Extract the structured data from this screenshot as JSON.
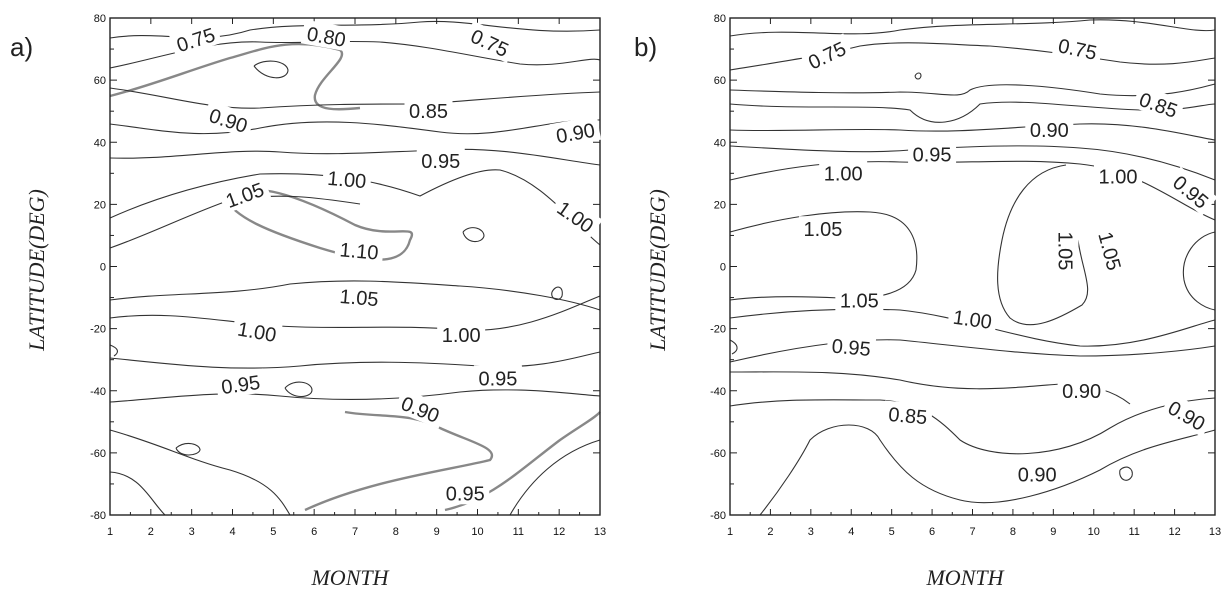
{
  "chart_data": [
    {
      "type": "contour",
      "panel_label": "a)",
      "xlabel": "MONTH",
      "ylabel": "LATITUDE(DEG)",
      "xlim": [
        1,
        13
      ],
      "ylim": [
        -80,
        80
      ],
      "x_ticks": [
        "1",
        "2",
        "3",
        "4",
        "5",
        "6",
        "7",
        "8",
        "9",
        "10",
        "11",
        "12",
        "13"
      ],
      "y_ticks": [
        "80",
        "60",
        "40",
        "20",
        "0",
        "-20",
        "-40",
        "-60",
        "-80"
      ],
      "contour_labels": [
        {
          "text": "0.75",
          "month": 3.1,
          "lat": 73,
          "rot": -18
        },
        {
          "text": "0.80",
          "month": 6.3,
          "lat": 74,
          "rot": 10
        },
        {
          "text": "0.75",
          "month": 10.3,
          "lat": 72,
          "rot": 25
        },
        {
          "text": "0.90",
          "month": 3.9,
          "lat": 47,
          "rot": 18
        },
        {
          "text": "0.85",
          "month": 8.8,
          "lat": 50,
          "rot": 0
        },
        {
          "text": "0.90",
          "month": 12.4,
          "lat": 43,
          "rot": -10
        },
        {
          "text": "0.95",
          "month": 9.1,
          "lat": 34,
          "rot": 0
        },
        {
          "text": "1.00",
          "month": 6.8,
          "lat": 28,
          "rot": 5
        },
        {
          "text": "1.05",
          "month": 4.3,
          "lat": 23,
          "rot": -20
        },
        {
          "text": "1.00",
          "month": 12.4,
          "lat": 16,
          "rot": 35
        },
        {
          "text": "1.10",
          "month": 7.1,
          "lat": 5,
          "rot": 5
        },
        {
          "text": "1.05",
          "month": 7.1,
          "lat": -10,
          "rot": 5
        },
        {
          "text": "1.00",
          "month": 4.6,
          "lat": -21,
          "rot": 10
        },
        {
          "text": "1.00",
          "month": 9.6,
          "lat": -22,
          "rot": 0
        },
        {
          "text": "0.95",
          "month": 4.2,
          "lat": -38,
          "rot": -8
        },
        {
          "text": "0.95",
          "month": 10.5,
          "lat": -36,
          "rot": 0
        },
        {
          "text": "0.90",
          "month": 8.6,
          "lat": -46,
          "rot": 22
        },
        {
          "text": "0.95",
          "month": 9.7,
          "lat": -73,
          "rot": 0
        }
      ]
    },
    {
      "type": "contour",
      "panel_label": "b)",
      "xlabel": "MONTH",
      "ylabel": "LATITUDE(DEG)",
      "xlim": [
        1,
        13
      ],
      "ylim": [
        -80,
        80
      ],
      "x_ticks": [
        "1",
        "2",
        "3",
        "4",
        "5",
        "6",
        "7",
        "8",
        "9",
        "10",
        "11",
        "12",
        "13"
      ],
      "y_ticks": [
        "80",
        "60",
        "40",
        "20",
        "0",
        "-20",
        "-40",
        "-60",
        "-80"
      ],
      "contour_labels": [
        {
          "text": "0.75",
          "month": 3.4,
          "lat": 68,
          "rot": -25
        },
        {
          "text": "0.75",
          "month": 9.6,
          "lat": 70,
          "rot": 12
        },
        {
          "text": "0.85",
          "month": 11.6,
          "lat": 52,
          "rot": 20
        },
        {
          "text": "0.90",
          "month": 8.9,
          "lat": 44,
          "rot": 0
        },
        {
          "text": "0.95",
          "month": 6.0,
          "lat": 36,
          "rot": 0
        },
        {
          "text": "1.00",
          "month": 3.8,
          "lat": 30,
          "rot": 0
        },
        {
          "text": "1.00",
          "month": 10.6,
          "lat": 29,
          "rot": 0
        },
        {
          "text": "0.95",
          "month": 12.4,
          "lat": 24,
          "rot": 40
        },
        {
          "text": "1.05",
          "month": 3.3,
          "lat": 12,
          "rot": 0
        },
        {
          "text": "1.05",
          "month": 9.3,
          "lat": 5,
          "rot": 90
        },
        {
          "text": "1.05",
          "month": 10.4,
          "lat": 5,
          "rot": 75
        },
        {
          "text": "1.05",
          "month": 4.2,
          "lat": -11,
          "rot": 0
        },
        {
          "text": "1.00",
          "month": 7.0,
          "lat": -17,
          "rot": 8
        },
        {
          "text": "0.95",
          "month": 4.0,
          "lat": -26,
          "rot": 5
        },
        {
          "text": "0.90",
          "month": 9.7,
          "lat": -40,
          "rot": 0
        },
        {
          "text": "0.85",
          "month": 5.4,
          "lat": -48,
          "rot": 5
        },
        {
          "text": "0.90",
          "month": 12.3,
          "lat": -48,
          "rot": 30
        },
        {
          "text": "0.90",
          "month": 8.6,
          "lat": -67,
          "rot": 0
        }
      ]
    }
  ]
}
